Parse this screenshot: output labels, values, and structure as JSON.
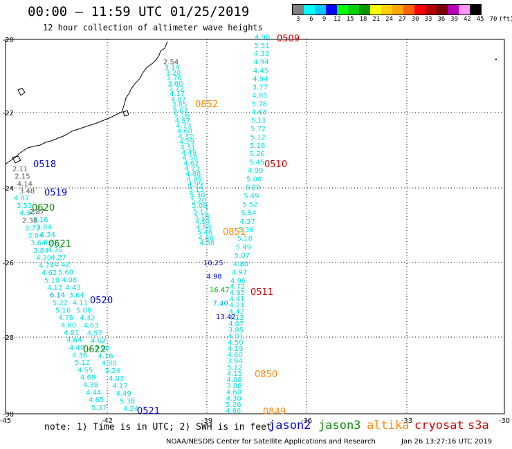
{
  "title": "00:00 – 11:59 UTC 01/25/2019",
  "subtitle": "12 hour collection of altimeter wave heights",
  "colorbar": {
    "labels": [
      "3",
      "6",
      "9",
      "12",
      "15",
      "18",
      "21",
      "24",
      "27",
      "30",
      "33",
      "36",
      "39",
      "42",
      "45",
      "70",
      "(ft)"
    ],
    "colors": [
      "#7f7f7f",
      "#00ffff",
      "#00c8ff",
      "#0000ff",
      "#00ff00",
      "#00d200",
      "#009600",
      "#ffff00",
      "#ffd200",
      "#ffa500",
      "#ff6400",
      "#ff0000",
      "#b40000",
      "#780000",
      "#b400b4",
      "#ff96ff",
      "#000000"
    ]
  },
  "axes": {
    "lon_labels": [
      "-45",
      "-42",
      "-39",
      "-36",
      "-33",
      "-30"
    ],
    "lat_labels": [
      "-20",
      "-22",
      "-24",
      "-26",
      "-28",
      "-30"
    ]
  },
  "tracks": [
    {
      "satellite": "cryosat",
      "color": "#cc0000",
      "label": "0509",
      "values": [
        "4.90",
        "5.51",
        "4.33",
        "4.94",
        "4.45",
        "4.94",
        "3.77",
        "4.85",
        "5.78",
        "4.63",
        "5.11",
        "5.72",
        "5.12",
        "5.18",
        "5.26",
        "5.45"
      ]
    },
    {
      "satellite": "cryosat",
      "color": "#cc0000",
      "label": "0510",
      "values": [
        "4.99",
        "5.00",
        "5.20",
        "5.49",
        "5.52",
        "5.54",
        "4.37",
        "5.36",
        "5.18",
        "5.49",
        "5.07",
        "4.80",
        "4.97",
        "4.96"
      ]
    },
    {
      "satellite": "cryosat",
      "color": "#cc0000",
      "label": "0511",
      "values": [
        "4.72",
        "4.95",
        "4.41",
        "4.21",
        "4.42",
        "4.13",
        "4.07",
        "3.85",
        "4.01",
        "4.50",
        "4.19",
        "4.60",
        "3.94",
        "5.12",
        "4.15",
        "4.08",
        "3.88",
        "4.60",
        "4.30",
        "5.26",
        "4.86"
      ]
    },
    {
      "satellite": "altika",
      "color": "#ff8c00",
      "label": "0852",
      "values": [
        "2.54",
        "3.14",
        "3.20",
        "3.76",
        "3.60",
        "3.72",
        "4.17",
        "4.07",
        "3.85",
        "5.01",
        "5.16",
        "4.97",
        "4.73",
        "4.60",
        "4.32",
        "4.29",
        "4.51",
        "4.49",
        "4.50",
        "4.62",
        "4.73",
        "4.88",
        "4.95",
        "4.99",
        "5.15",
        "5.30",
        "5.20",
        "5.08",
        "5.12",
        "5.18",
        "4.94",
        "4.88",
        "5.46",
        "4.88",
        "4.38"
      ]
    },
    {
      "satellite": "altika",
      "color": "#ff8c00",
      "label": "0851",
      "values": [
        "10.25",
        "4.98",
        "16.47",
        "7.40",
        "13.42"
      ]
    },
    {
      "satellite": "altika",
      "color": "#ff8c00",
      "label": "0850",
      "values": []
    },
    {
      "satellite": "altika",
      "color": "#ff8c00",
      "label": "0849",
      "values": []
    },
    {
      "satellite": "jason2",
      "color": "#0000cc",
      "label": "0518",
      "values": [
        "2.11",
        "2.15",
        "4.14",
        "3.48"
      ]
    },
    {
      "satellite": "jason2",
      "color": "#0000cc",
      "label": "0519",
      "values": [
        "4.87",
        "3.53",
        "4.34",
        "2.38",
        "3.72",
        "3.84",
        "3.64",
        "3.84",
        "4.20",
        "4.74",
        "4.62",
        "5.10",
        "4.12",
        "6.14",
        "5.22",
        "5.16",
        "4.76",
        "4.80",
        "4.81",
        "4.64",
        "4.40",
        "4.36",
        "5.12",
        "4.55",
        "4.69",
        "4.38",
        "4.44",
        "4.65",
        "5.37"
      ]
    },
    {
      "satellite": "jason2",
      "color": "#0000cc",
      "label": "0520",
      "values": [
        "2.87",
        "3.16",
        "3.84",
        "4.34",
        "4.82",
        "4.35",
        "4.27",
        "4.42",
        "5.60",
        "4.08",
        "4.43",
        "3.64",
        "4.11",
        "5.08",
        "4.32",
        "4.63",
        "4.57",
        "4.62",
        "4.60",
        "4.16",
        "4.80",
        "5.24",
        "4.03",
        "4.17",
        "4.49",
        "5.38",
        "4.24"
      ]
    },
    {
      "satellite": "jason2",
      "color": "#0000cc",
      "label": "0521",
      "values": []
    },
    {
      "satellite": "jason3",
      "color": "#008800",
      "label": "0620",
      "values": []
    },
    {
      "satellite": "jason3",
      "color": "#008800",
      "label": "0621",
      "values": []
    },
    {
      "satellite": "jason3",
      "color": "#008800",
      "label": "0622",
      "values": []
    }
  ],
  "legend": {
    "note": "note: 1) Time is in UTC; 2) SWH is in feet",
    "items": [
      {
        "name": "jason2",
        "color": "#0000cc"
      },
      {
        "name": "jason3",
        "color": "#008800"
      },
      {
        "name": "altika",
        "color": "#ff8c00"
      },
      {
        "name": "cryosat",
        "color": "#cc0000"
      },
      {
        "name": "s3a",
        "color": "#cc0000"
      }
    ]
  },
  "credit": "NOAA/NESDIS Center for Satellite Applications and Research",
  "timestamp": "Jan 26 13:27:16 UTC 2019"
}
